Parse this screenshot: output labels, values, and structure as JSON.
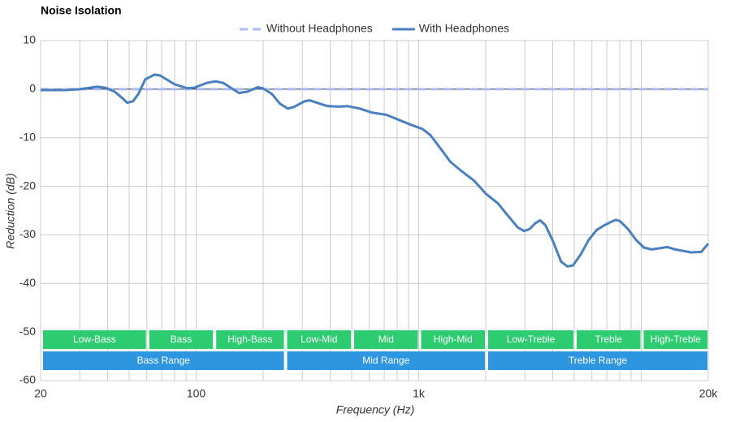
{
  "chart_data": {
    "type": "line",
    "title": "Noise Isolation",
    "xlabel": "Frequency (Hz)",
    "ylabel": "Reduction (dB)",
    "xscale": "log",
    "xlim": [
      20,
      20000
    ],
    "ylim": [
      -60,
      10
    ],
    "xticks": [
      20,
      100,
      {
        "value": 1000,
        "label": "1k"
      },
      {
        "value": 20000,
        "label": "20k"
      }
    ],
    "xminor": [
      30,
      40,
      50,
      60,
      70,
      80,
      90,
      200,
      300,
      400,
      500,
      600,
      700,
      800,
      900,
      2000,
      3000,
      4000,
      5000,
      6000,
      7000,
      8000,
      9000,
      10000
    ],
    "yticks": [
      10,
      0,
      -10,
      -20,
      -30,
      -40,
      -50,
      -60
    ],
    "grid": true,
    "legend": "top",
    "series": [
      {
        "name": "Without Headphones",
        "color": "#aabbf5",
        "dashed": true,
        "x": [
          20,
          20000
        ],
        "values": [
          0,
          0
        ]
      },
      {
        "name": "With Headphones",
        "color": "#4a7fc0",
        "dashed": false,
        "x": [
          20,
          26,
          30,
          36,
          39,
          43,
          47,
          49,
          52,
          55,
          59,
          65,
          69,
          80,
          91,
          98,
          112,
          122,
          132,
          144,
          156,
          170,
          189,
          199,
          219,
          238,
          258,
          274,
          307,
          324,
          360,
          390,
          441,
          479,
          544,
          614,
          718,
          812,
          919,
          1040,
          1130,
          1220,
          1390,
          1570,
          1770,
          2000,
          2270,
          2460,
          2790,
          2980,
          3150,
          3340,
          3510,
          3710,
          4030,
          4360,
          4660,
          4930,
          5350,
          5810,
          6300,
          6840,
          7410,
          7720,
          8040,
          8720,
          9460,
          10270,
          11140,
          13100,
          14200,
          16750,
          18600,
          20000
        ],
        "values": [
          -0.2,
          -0.2,
          0,
          0.5,
          0.3,
          -0.5,
          -2,
          -2.8,
          -2.5,
          -1,
          2,
          3,
          2.8,
          1,
          0.2,
          0.3,
          1.3,
          1.6,
          1.3,
          0.2,
          -0.8,
          -0.5,
          0.4,
          0.2,
          -1,
          -3,
          -4,
          -3.7,
          -2.5,
          -2.3,
          -3,
          -3.5,
          -3.6,
          -3.5,
          -4,
          -4.8,
          -5.3,
          -6.3,
          -7.3,
          -8.2,
          -9.5,
          -11.5,
          -15,
          -17,
          -18.8,
          -21.5,
          -23.5,
          -25.5,
          -28.5,
          -29.2,
          -28.8,
          -27.6,
          -27,
          -28,
          -31.5,
          -35.5,
          -36.5,
          -36.3,
          -34,
          -31,
          -29,
          -28,
          -27.2,
          -26.9,
          -27.2,
          -28.8,
          -31,
          -32.6,
          -33,
          -32.5,
          -33,
          -33.6,
          -33.5,
          -31.8
        ]
      }
    ],
    "band_color": "#2ecc71",
    "range_color": "#2e96e0",
    "bands": [
      {
        "label": "Low-Bass",
        "range": [
          20,
          60
        ]
      },
      {
        "label": "Bass",
        "range": [
          60,
          120
        ]
      },
      {
        "label": "High-Bass",
        "range": [
          120,
          250
        ]
      },
      {
        "label": "Low-Mid",
        "range": [
          250,
          500
        ]
      },
      {
        "label": "Mid",
        "range": [
          500,
          1000
        ]
      },
      {
        "label": "High-Mid",
        "range": [
          1000,
          2000
        ]
      },
      {
        "label": "Low-Treble",
        "range": [
          2000,
          5000
        ]
      },
      {
        "label": "Treble",
        "range": [
          5000,
          10000
        ]
      },
      {
        "label": "High-Treble",
        "range": [
          10000,
          20000
        ]
      }
    ],
    "ranges": [
      {
        "label": "Bass Range",
        "range": [
          20,
          250
        ]
      },
      {
        "label": "Mid Range",
        "range": [
          250,
          2000
        ]
      },
      {
        "label": "Treble Range",
        "range": [
          2000,
          20000
        ]
      }
    ]
  }
}
